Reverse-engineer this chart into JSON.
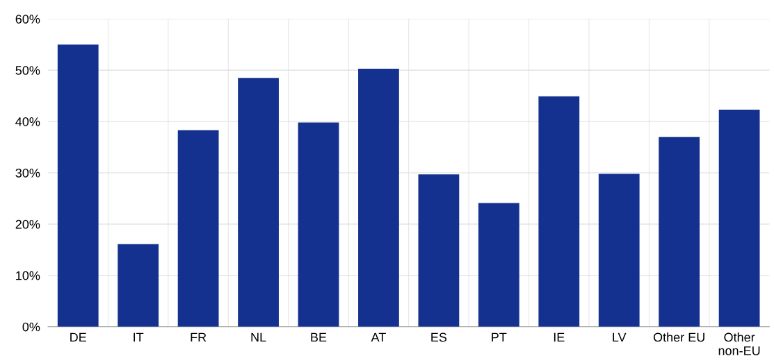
{
  "chart_data": {
    "type": "bar",
    "categories": [
      "DE",
      "IT",
      "FR",
      "NL",
      "BE",
      "AT",
      "ES",
      "PT",
      "IE",
      "LV",
      "Other EU",
      "Other\nnon-EU"
    ],
    "values": [
      55,
      16.1,
      38.3,
      48.5,
      39.8,
      50.3,
      29.7,
      24.1,
      44.9,
      29.8,
      37.0,
      42.3
    ],
    "color": "#14318f",
    "ylim": [
      0,
      60
    ],
    "yticks": [
      {
        "value": 0,
        "label": "0%"
      },
      {
        "value": 10,
        "label": "10%"
      },
      {
        "value": 20,
        "label": "20%"
      },
      {
        "value": 30,
        "label": "30%"
      },
      {
        "value": 40,
        "label": "40%"
      },
      {
        "value": 50,
        "label": "50%"
      },
      {
        "value": 60,
        "label": "60%"
      }
    ],
    "grid": true
  }
}
